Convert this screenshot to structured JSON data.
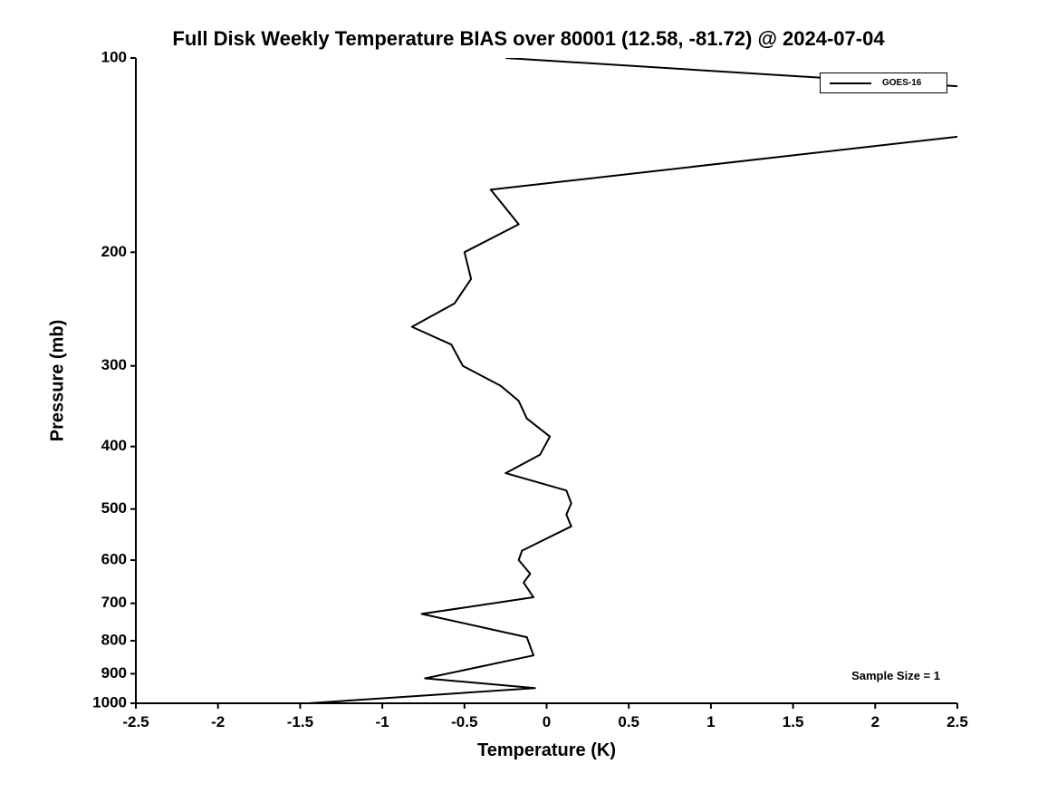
{
  "title": "Full Disk Weekly Temperature BIAS over 80001 (12.58, -81.72) @ 2024-07-04",
  "legend": {
    "entries": [
      {
        "label": "GOES-16",
        "color": "#000000"
      }
    ]
  },
  "annotations": {
    "sample_size": "Sample Size = 1"
  },
  "colors": {
    "line": "#000000",
    "axes": "#000000",
    "background": "#ffffff"
  },
  "chart_data": {
    "type": "line",
    "title": "Full Disk Weekly Temperature BIAS over 80001 (12.58, -81.72) @ 2024-07-04",
    "xlabel": "Temperature (K)",
    "ylabel": "Pressure (mb)",
    "xlim": [
      -2.5,
      2.5
    ],
    "ylim": [
      100,
      1000
    ],
    "yscale": "log",
    "y_inverted": true,
    "grid": false,
    "legend_position": "upper right inside",
    "xticks": [
      -2.5,
      -2,
      -1.5,
      -1,
      -0.5,
      0,
      0.5,
      1,
      1.5,
      2,
      2.5
    ],
    "xtick_labels": [
      "-2.5",
      "-2",
      "-1.5",
      "-1",
      "-0.5",
      "0",
      "0.5",
      "1",
      "1.5",
      "2",
      "2.5"
    ],
    "yticks": [
      100,
      200,
      300,
      400,
      500,
      600,
      700,
      800,
      900,
      1000
    ],
    "ytick_labels": [
      "100",
      "200",
      "300",
      "400",
      "500",
      "600",
      "700",
      "800",
      "900",
      "1000"
    ],
    "annotation": "Sample Size = 1",
    "series": [
      {
        "name": "GOES-16",
        "color": "#000000",
        "line_width": 2,
        "pressure_mb": [
          100,
          111,
          121,
          132,
          160,
          181,
          200,
          220,
          240,
          261,
          278,
          300,
          322,
          340,
          362,
          386,
          412,
          440,
          468,
          490,
          510,
          532,
          580,
          600,
          630,
          650,
          685,
          727,
          790,
          843,
          915,
          947,
          1000
        ],
        "bias_k": [
          -0.25,
          2.6,
          2.85,
          2.55,
          -0.34,
          -0.17,
          -0.5,
          -0.46,
          -0.56,
          -0.82,
          -0.58,
          -0.51,
          -0.28,
          -0.17,
          -0.12,
          0.02,
          -0.04,
          -0.25,
          0.12,
          0.15,
          0.12,
          0.15,
          -0.15,
          -0.17,
          -0.1,
          -0.14,
          -0.08,
          -0.76,
          -0.12,
          -0.08,
          -0.74,
          -0.07,
          -1.45
        ]
      }
    ]
  }
}
